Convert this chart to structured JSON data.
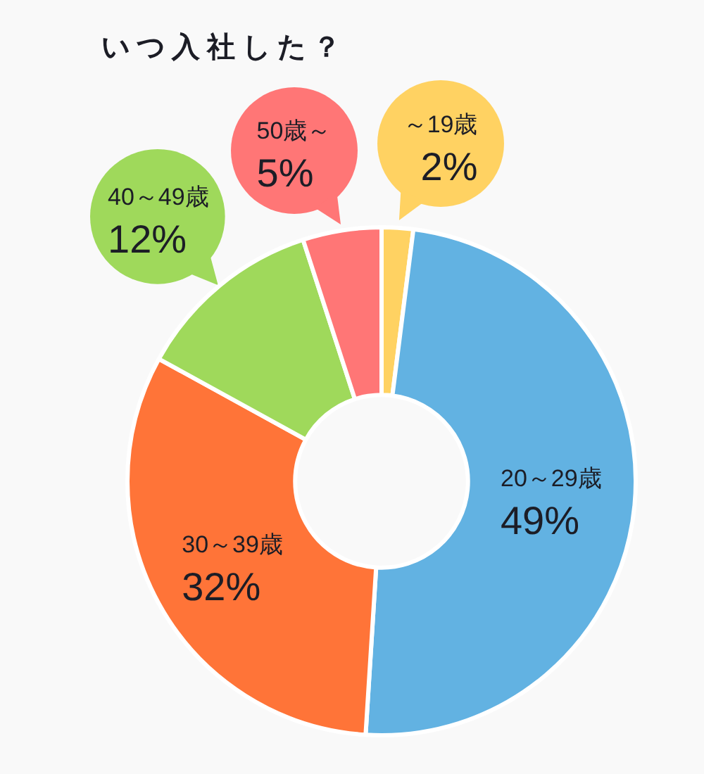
{
  "chart_data": {
    "type": "donut",
    "title": "いつ入社した？",
    "categories": [
      "～19歳",
      "20～29歳",
      "30～39歳",
      "40～49歳",
      "50歳～"
    ],
    "values": [
      2,
      49,
      32,
      12,
      5
    ],
    "value_labels": [
      "2%",
      "49%",
      "32%",
      "12%",
      "5%"
    ],
    "colors": [
      "#ffd262",
      "#62b2e2",
      "#ff7438",
      "#9fd95b",
      "#ff7676"
    ],
    "legend": false
  }
}
